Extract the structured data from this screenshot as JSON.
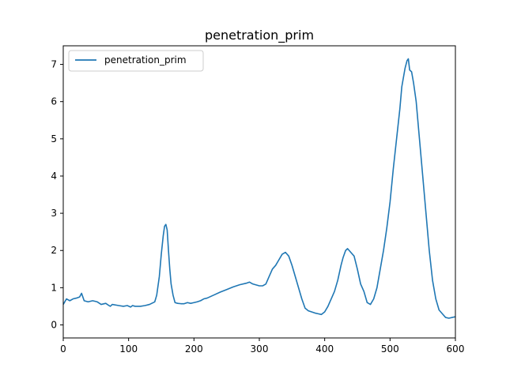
{
  "chart_data": {
    "type": "line",
    "title": "penetration_prim",
    "xlabel": "",
    "ylabel": "",
    "xlim": [
      0,
      600
    ],
    "ylim": [
      -0.35,
      7.5
    ],
    "xticks": [
      0,
      100,
      200,
      300,
      400,
      500,
      600
    ],
    "yticks": [
      0,
      1,
      2,
      3,
      4,
      5,
      6,
      7
    ],
    "grid": false,
    "legend": {
      "position": "top-left",
      "entries": [
        "penetration_prim"
      ]
    },
    "series": [
      {
        "name": "penetration_prim",
        "color": "#1f77b4",
        "x": [
          0,
          5,
          10,
          15,
          20,
          25,
          28,
          32,
          38,
          45,
          52,
          58,
          65,
          70,
          72,
          75,
          85,
          92,
          98,
          103,
          106,
          110,
          118,
          125,
          132,
          140,
          143,
          147,
          150,
          153,
          155,
          157,
          159,
          161,
          163,
          165,
          168,
          171,
          175,
          180,
          185,
          190,
          195,
          200,
          205,
          210,
          215,
          220,
          230,
          240,
          250,
          260,
          270,
          280,
          285,
          290,
          300,
          305,
          310,
          315,
          320,
          325,
          330,
          335,
          340,
          345,
          350,
          355,
          360,
          365,
          370,
          375,
          380,
          385,
          390,
          395,
          400,
          405,
          410,
          415,
          420,
          425,
          428,
          432,
          435,
          440,
          445,
          450,
          455,
          460,
          465,
          470,
          475,
          480,
          485,
          490,
          495,
          500,
          505,
          510,
          515,
          518,
          520,
          523,
          526,
          528,
          530,
          533,
          536,
          540,
          545,
          550,
          555,
          560,
          565,
          570,
          575,
          580,
          585,
          590,
          595,
          600
        ],
        "y": [
          0.55,
          0.7,
          0.65,
          0.7,
          0.72,
          0.75,
          0.85,
          0.65,
          0.62,
          0.65,
          0.62,
          0.55,
          0.58,
          0.52,
          0.5,
          0.55,
          0.52,
          0.5,
          0.52,
          0.48,
          0.52,
          0.5,
          0.5,
          0.52,
          0.55,
          0.62,
          0.8,
          1.3,
          1.9,
          2.4,
          2.65,
          2.7,
          2.55,
          2.0,
          1.5,
          1.1,
          0.8,
          0.6,
          0.58,
          0.57,
          0.57,
          0.6,
          0.58,
          0.6,
          0.62,
          0.65,
          0.7,
          0.72,
          0.8,
          0.88,
          0.95,
          1.02,
          1.08,
          1.12,
          1.15,
          1.1,
          1.05,
          1.05,
          1.1,
          1.3,
          1.5,
          1.6,
          1.75,
          1.9,
          1.95,
          1.85,
          1.6,
          1.3,
          1.0,
          0.7,
          0.45,
          0.38,
          0.35,
          0.32,
          0.3,
          0.28,
          0.35,
          0.5,
          0.7,
          0.9,
          1.2,
          1.6,
          1.8,
          2.0,
          2.05,
          1.95,
          1.85,
          1.5,
          1.1,
          0.9,
          0.6,
          0.55,
          0.7,
          1.0,
          1.5,
          2.0,
          2.6,
          3.3,
          4.2,
          5.0,
          5.8,
          6.4,
          6.6,
          6.9,
          7.1,
          7.15,
          6.85,
          6.8,
          6.5,
          6.0,
          5.0,
          4.0,
          3.0,
          2.0,
          1.2,
          0.7,
          0.4,
          0.3,
          0.2,
          0.18,
          0.2,
          0.22
        ]
      }
    ]
  }
}
